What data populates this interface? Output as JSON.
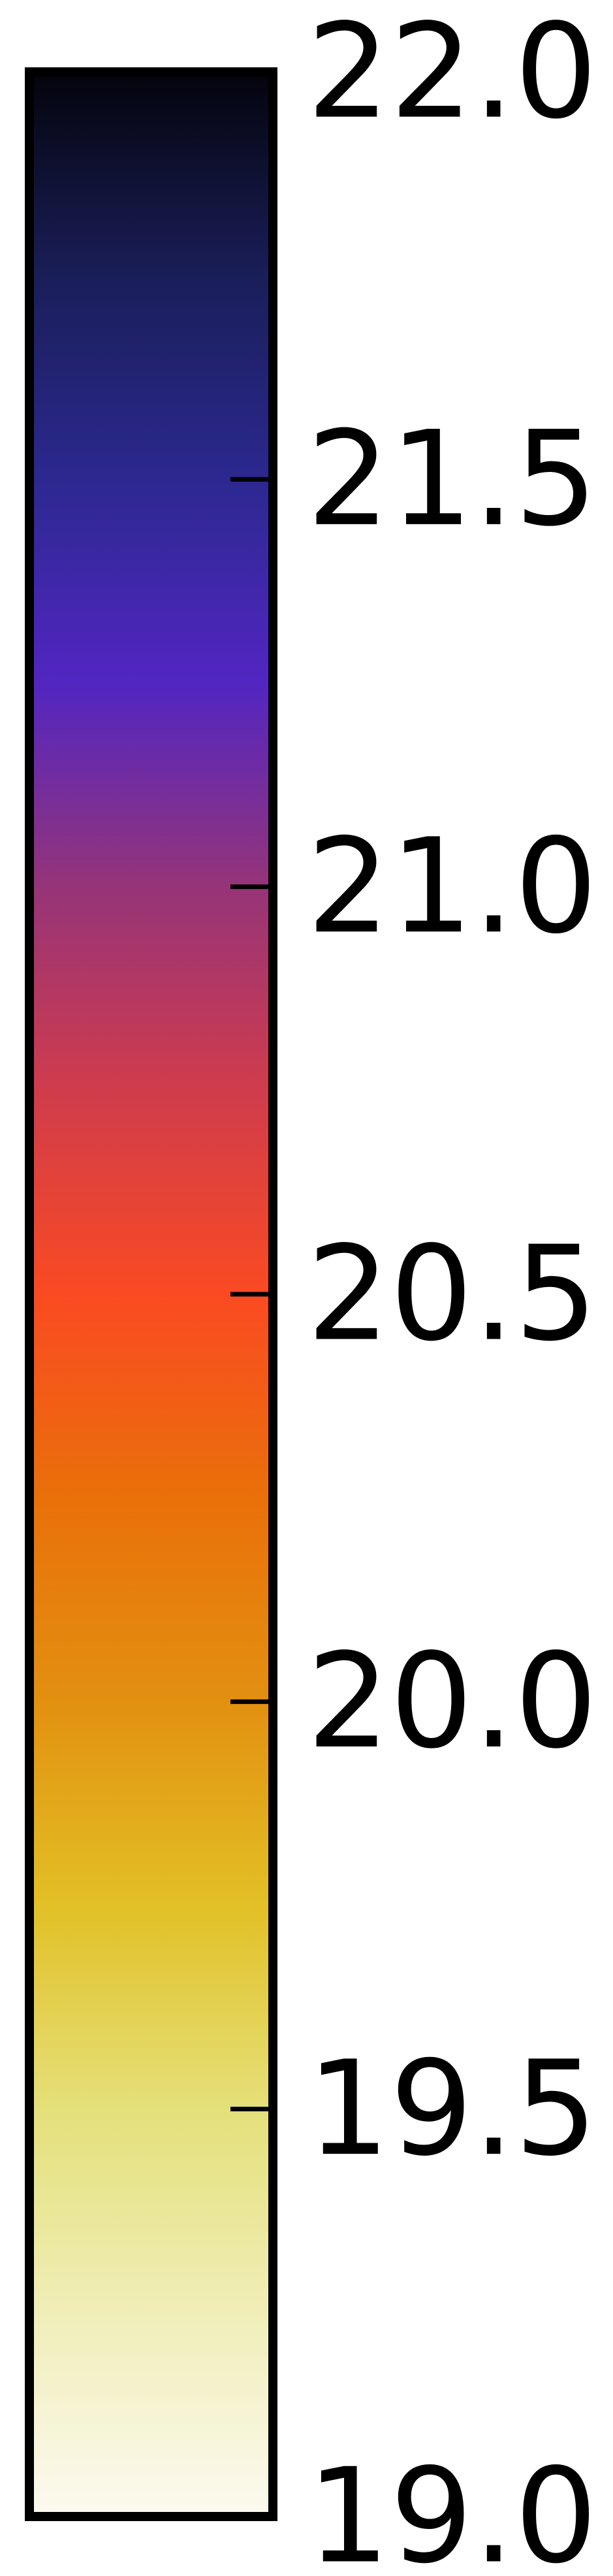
{
  "chart_data": {
    "type": "heatmap",
    "title": "",
    "ylabel": "",
    "ylim": [
      19.0,
      22.0
    ],
    "orientation": "vertical",
    "ticks": [
      19.0,
      19.5,
      20.0,
      20.5,
      21.0,
      21.5,
      22.0
    ],
    "tick_labels": [
      "19.0",
      "19.5",
      "20.0",
      "20.5",
      "21.0",
      "21.5",
      "22.0"
    ],
    "colormap": [
      {
        "value": 19.0,
        "color": "#fcfaf0"
      },
      {
        "value": 19.25,
        "color": "#f0eeb8"
      },
      {
        "value": 19.5,
        "color": "#e4e07a"
      },
      {
        "value": 19.75,
        "color": "#e2c026"
      },
      {
        "value": 20.0,
        "color": "#e29010"
      },
      {
        "value": 20.25,
        "color": "#ea700a"
      },
      {
        "value": 20.5,
        "color": "#fa4a22"
      },
      {
        "value": 20.75,
        "color": "#d03c4c"
      },
      {
        "value": 21.0,
        "color": "#963478"
      },
      {
        "value": 21.25,
        "color": "#5226c2"
      },
      {
        "value": 21.5,
        "color": "#2c2890"
      },
      {
        "value": 21.75,
        "color": "#1a1e58"
      },
      {
        "value": 22.0,
        "color": "#04040c"
      }
    ],
    "frame_color": "#000000"
  }
}
